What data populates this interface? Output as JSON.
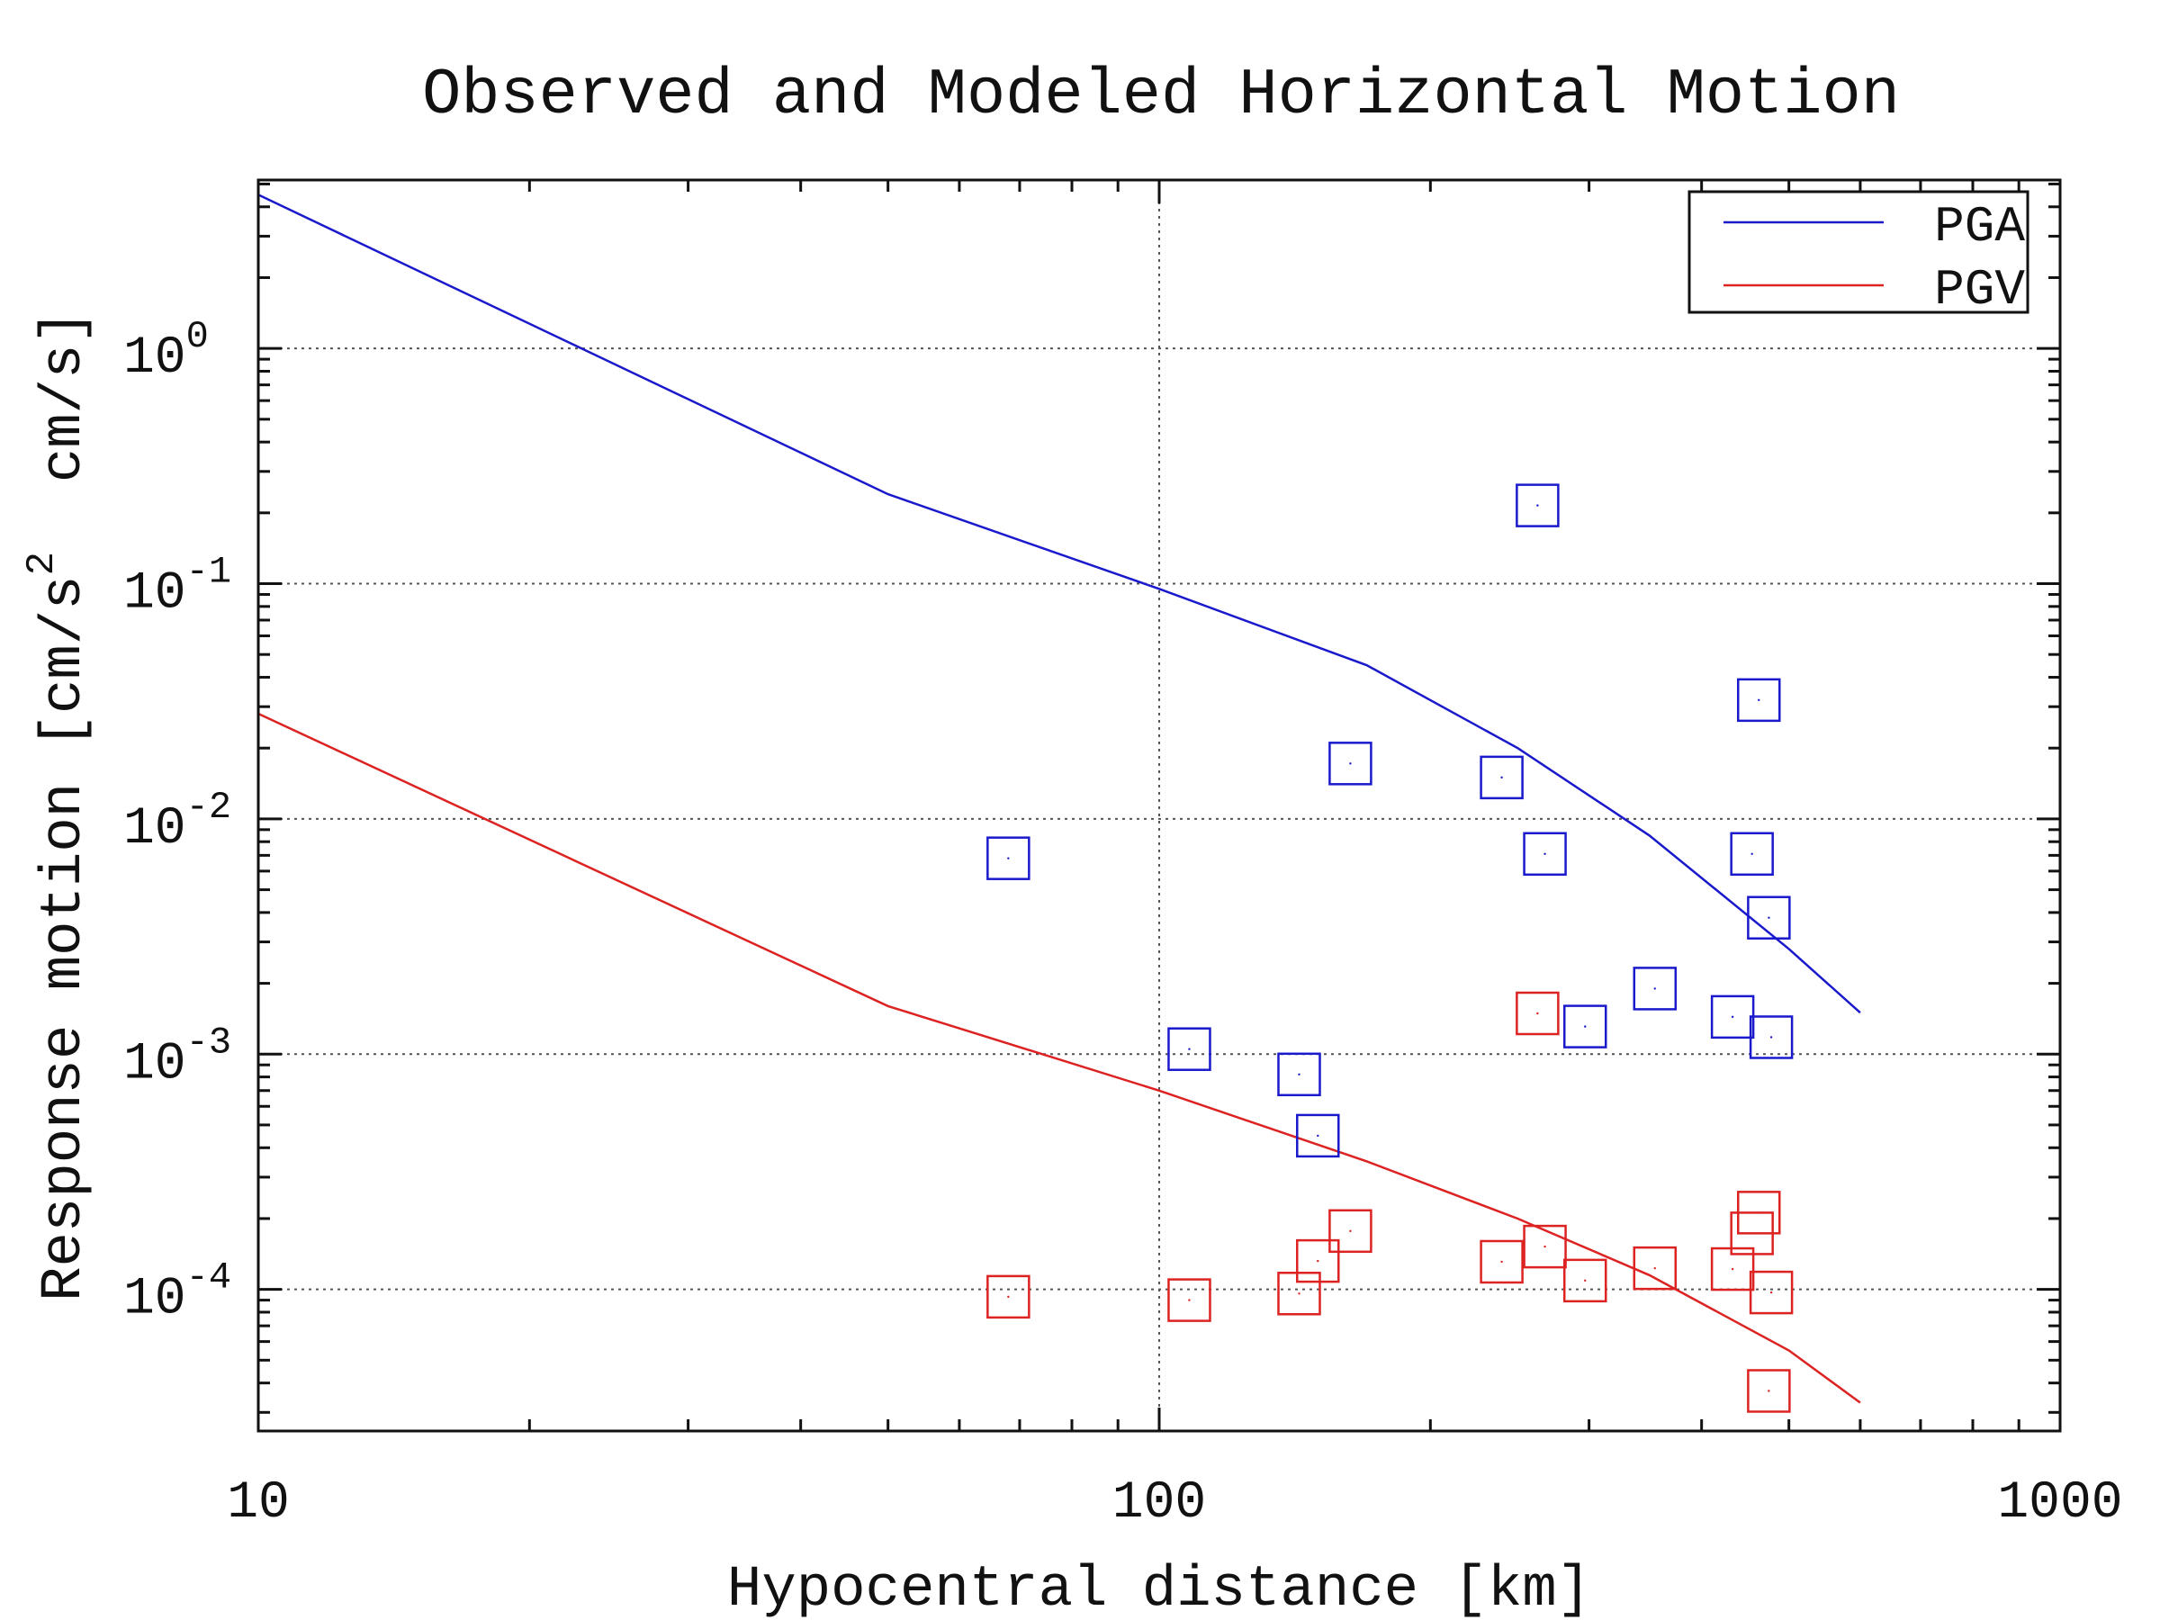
{
  "chart_data": {
    "type": "scatter",
    "title": "Observed and Modeled Horizontal Motion",
    "xlabel": "Hypocentral distance [km]",
    "ylabel": "Response motion [cm/s",
    "ylabel_sup": "2",
    "ylabel_rest": "  cm/s]",
    "x_scale": "log",
    "y_scale": "log",
    "xlim": [
      10,
      1000
    ],
    "ylim": [
      2.5e-05,
      5.2
    ],
    "x_ticks": [
      {
        "value": 10,
        "label": "10"
      },
      {
        "value": 100,
        "label": "100"
      },
      {
        "value": 1000,
        "label": "1000"
      }
    ],
    "y_ticks": [
      {
        "value": 1,
        "base": "10",
        "exp": "0"
      },
      {
        "value": 0.1,
        "base": "10",
        "exp": "-1"
      },
      {
        "value": 0.01,
        "base": "10",
        "exp": "-2"
      },
      {
        "value": 0.001,
        "base": "10",
        "exp": "-3"
      },
      {
        "value": 0.0001,
        "base": "10",
        "exp": "-4"
      }
    ],
    "grid": true,
    "legend_position": "top-right",
    "legend": [
      {
        "name": "PGA",
        "color": "#1a1acc"
      },
      {
        "name": "PGV",
        "color": "#dd2222"
      }
    ],
    "model_lines": [
      {
        "name": "PGA",
        "color": "#1a1acc",
        "x": [
          10,
          50,
          100,
          170,
          250,
          350,
          500,
          600
        ],
        "y": [
          4.5,
          0.24,
          0.095,
          0.045,
          0.02,
          0.0085,
          0.0028,
          0.0015
        ]
      },
      {
        "name": "PGV",
        "color": "#dd2222",
        "x": [
          10,
          50,
          100,
          170,
          250,
          350,
          500,
          600
        ],
        "y": [
          0.028,
          0.0016,
          0.0007,
          0.00035,
          0.0002,
          0.000115,
          5.5e-05,
          3.3e-05
        ]
      }
    ],
    "observed": [
      {
        "name": "PGA",
        "color": "#1a1acc",
        "x": [
          68,
          108,
          143,
          150,
          163,
          240,
          263,
          268,
          297,
          355,
          433,
          455,
          463,
          475,
          478
        ],
        "y": [
          0.0068,
          0.00105,
          0.00082,
          0.00045,
          0.0172,
          0.015,
          0.215,
          0.0071,
          0.00131,
          0.0019,
          0.00144,
          0.0071,
          0.032,
          0.0038,
          0.00118
        ]
      },
      {
        "name": "PGV",
        "color": "#dd2222",
        "x": [
          68,
          108,
          143,
          150,
          163,
          240,
          263,
          268,
          297,
          355,
          433,
          455,
          463,
          475,
          478
        ],
        "y": [
          9.3e-05,
          9e-05,
          9.6e-05,
          0.000132,
          0.000177,
          0.000131,
          0.00149,
          0.000152,
          0.000109,
          0.000123,
          0.000122,
          0.000173,
          0.000212,
          3.7e-05,
          9.7e-05
        ]
      }
    ]
  }
}
